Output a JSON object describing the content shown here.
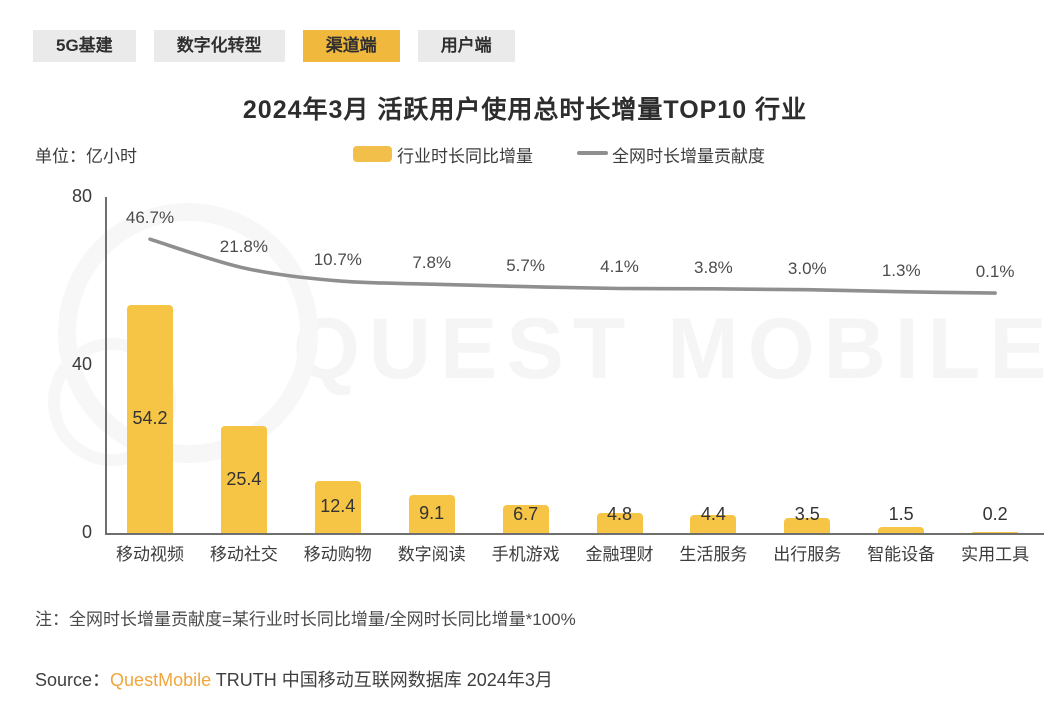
{
  "tabs": [
    {
      "label": "5G基建",
      "active": false
    },
    {
      "label": "数字化转型",
      "active": false
    },
    {
      "label": "渠道端",
      "active": true
    },
    {
      "label": "用户端",
      "active": false
    }
  ],
  "title": "2024年3月 活跃用户使用总时长增量TOP10 行业",
  "unit_label": "单位：亿小时",
  "legend": {
    "bar_label": "行业时长同比增量",
    "line_label": "全网时长增量贡献度"
  },
  "watermark": "QUEST MOBILE",
  "chart_data": {
    "type": "bar",
    "title": "2024年3月 活跃用户使用总时长增量TOP10 行业",
    "ylabel": "亿小时",
    "categories": [
      "移动视频",
      "移动社交",
      "移动购物",
      "数字阅读",
      "手机游戏",
      "金融理财",
      "生活服务",
      "出行服务",
      "智能设备",
      "实用工具"
    ],
    "series": [
      {
        "name": "行业时长同比增量",
        "type": "bar",
        "unit": "亿小时",
        "values": [
          54.2,
          25.4,
          12.4,
          9.1,
          6.7,
          4.8,
          4.4,
          3.5,
          1.5,
          0.2
        ]
      },
      {
        "name": "全网时长增量贡献度",
        "type": "line",
        "unit": "%",
        "values": [
          46.7,
          21.8,
          10.7,
          7.8,
          5.7,
          4.1,
          3.8,
          3.0,
          1.3,
          0.1
        ]
      }
    ],
    "y_axis": {
      "ticks": [
        0,
        40,
        80
      ],
      "min": 0,
      "max": 80
    },
    "legend_position": "top",
    "grid": false,
    "colors": {
      "bar": "#F6C545",
      "line": "#8F8F8F",
      "tab_active": "#F0B83D",
      "brand": "#F0A63C"
    }
  },
  "note": "注：全网时长增量贡献度=某行业时长同比增量/全网时长同比增量*100%",
  "source": {
    "prefix": "Source：",
    "brand": "QuestMobile",
    "suffix": " TRUTH 中国移动互联网数据库 2024年3月"
  }
}
